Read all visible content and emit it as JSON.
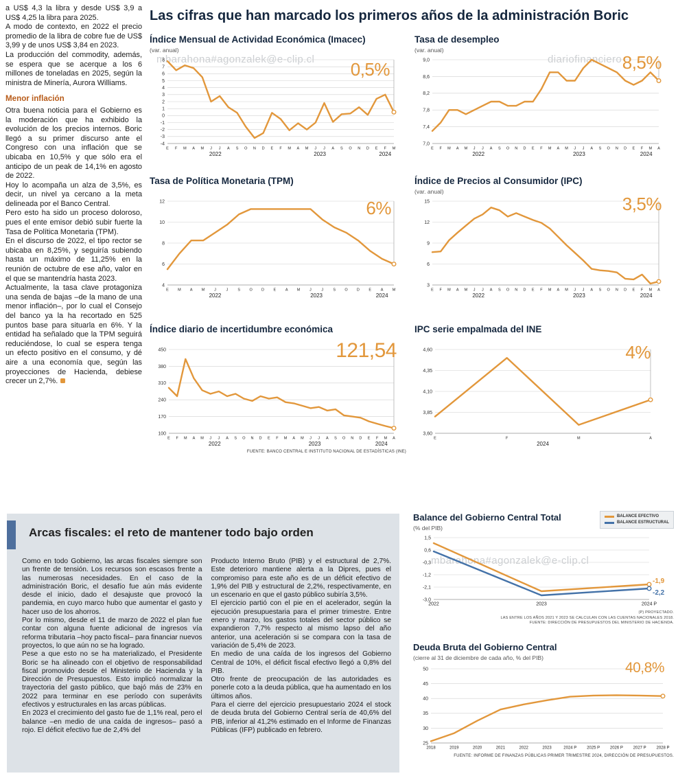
{
  "page": {
    "main_title": "Las cifras que han marcado los primeros años de la administración Boric",
    "watermark1": "mbarahona#agonzalek@e-clip.cl",
    "watermark2": "diariofinanciero",
    "watermark3": "mbarahona#agonzalek@e-clip.cl"
  },
  "left_article": {
    "intro": "a US$ 4,3 la libra y desde US$ 3,9 a US$ 4,25 la libra para 2025.\nA modo de contexto, en 2022 el precio promedio de la libra de cobre fue de US$ 3,99 y de unos US$ 3,84 en 2023.\nLa producción del commodity, además, se espera que se acerque a los 6 millones de toneladas en 2025, según la ministra de Minería, Aurora Williams.",
    "heading": "Menor inflación",
    "body": "Otra buena noticia para el Gobierno es la moderación que ha exhibido la evolución de los precios internos. Boric llegó a su primer discurso ante el Congreso con una inflación que se ubicaba en 10,5% y que sólo era el anticipo de un peak de 14,1% en agosto de 2022.\nHoy lo acompaña un alza de 3,5%, es decir, un nivel ya cercano a la meta delineada por el Banco Central.\nPero esto ha sido un proceso doloroso, pues el ente emisor debió subir fuerte la Tasa de Política Monetaria (TPM).\nEn el discurso de 2022, el tipo rector se ubicaba en 8,25%, y seguiría subiendo hasta un máximo de 11,25% en la reunión de octubre de ese año, valor en el que se mantendría hasta 2023.\nActualmente, la tasa clave protagoniza una senda de bajas –de la mano de una menor inflación–, por lo cual el Consejo del banco ya la ha recortado en 525 puntos base para situarla en 6%. Y la entidad ha señalado que la TPM seguirá reduciéndose, lo cual se espera tenga un efecto positivo en el consumo, y dé aire a una economía que, según las proyecciones de Hacienda, debiese crecer un 2,7%."
  },
  "fiscal_section": {
    "heading": "Arcas fiscales: el reto de mantener todo bajo orden",
    "col1": "Como en todo Gobierno, las arcas fiscales siempre son un frente de tensión. Los recursos son escasos frente a las numerosas necesidades. En el caso de la administración Boric, el desafío fue aún más evidente desde el inicio, dado el desajuste que provocó la pandemia, en cuyo marco hubo que aumentar el gasto y hacer uso de los ahorros.\nPor lo mismo, desde el 11 de marzo de 2022 el plan fue contar con alguna fuente adicional de ingresos vía reforma tributaria –hoy pacto fiscal– para financiar nuevos proyectos, lo que aún no se ha logrado.\nPese a que esto no se ha materializado, el Presidente Boric se ha alineado con el objetivo de responsabilidad fiscal promovido desde el Ministerio de Hacienda y la Dirección de Presupuestos. Esto implicó normalizar la trayectoria del gasto público, que bajó más de 23% en 2022 para terminar en ese período con superávits efectivos y estructurales en las arcas públicas.\nEn 2023 el crecimiento del gasto fue de 1,1% real, pero el balance –en medio de una caída de ingresos– pasó a rojo. El déficit efectivo fue de 2,4% del",
    "col2": "Producto Interno Bruto (PIB) y el estructural de 2,7%. Este deterioro mantiene alerta a la Dipres, pues el compromiso para este año es de un déficit efectivo de 1,9% del PIB y estructural de 2,2%, respectivamente, en un escenario en que el gasto público subiría 3,5%.\nEl ejercicio partió con el pie en el acelerador, según la ejecución presupuestaria para el primer trimestre. Entre enero y marzo, los gastos totales del sector público se expandieron 7,7% respecto al mismo lapso del año anterior, una aceleración si se compara con la tasa de variación de 5,4% de 2023.\nEn medio de una caída de los ingresos del Gobierno Central de 10%, el déficit fiscal efectivo llegó a 0,8% del PIB.\nOtro frente de preocupación de las autoridades es ponerle coto a la deuda pública, que ha aumentado en los últimos años.\nPara el cierre del ejercicio presupuestario 2024 el stock de deuda bruta del Gobierno Central sería de 40,6% del PIB, inferior al 41,2% estimado en el Informe de Finanzas Públicas (IFP) publicado en febrero."
  },
  "colors": {
    "accent_orange": "#E2973B",
    "accent_blue": "#4472A8",
    "navy": "#15273E",
    "panel_gray": "#DDE2E7"
  },
  "chart_data": {
    "imacec": {
      "type": "line",
      "title": "Índice Mensual de Actividad Económica (Imacec)",
      "subtitle": "(var. anual)",
      "value_label": "0,5%",
      "ylim": [
        -4,
        8
      ],
      "ytick_values": [
        8,
        7,
        6,
        5,
        4,
        3,
        2,
        1,
        0,
        -1,
        -2,
        -3,
        -4
      ],
      "ytick_labels": [
        "8",
        "7",
        "6",
        "5",
        "4",
        "3",
        "2",
        "1",
        "0",
        "-1",
        "-2",
        "-3",
        "-4"
      ],
      "x_labels": [
        "E",
        "F",
        "M",
        "A",
        "M",
        "J",
        "J",
        "A",
        "S",
        "O",
        "N",
        "D",
        "E",
        "F",
        "M",
        "A",
        "M",
        "J",
        "J",
        "A",
        "S",
        "O",
        "N",
        "D",
        "E",
        "F",
        "M"
      ],
      "yearspans": [
        {
          "label": "2022",
          "from": 0,
          "to": 11
        },
        {
          "label": "2023",
          "from": 12,
          "to": 23
        },
        {
          "label": "2024",
          "from": 24,
          "to": 26
        }
      ],
      "guide": true,
      "margins": {
        "l": 26,
        "r": 18,
        "t": 6,
        "b": 22
      },
      "series": [
        {
          "name": "Imacec",
          "color": "#E2973B",
          "values": [
            7.8,
            6.5,
            7.2,
            6.8,
            5.5,
            2.0,
            2.8,
            1.2,
            0.4,
            -1.6,
            -3.2,
            -2.5,
            0.4,
            -0.5,
            -2.1,
            -1.1,
            -2.0,
            -1.0,
            1.8,
            -0.9,
            0.2,
            0.3,
            1.2,
            0.1,
            2.4,
            3.0,
            0.5
          ]
        }
      ]
    },
    "desempleo": {
      "type": "line",
      "title": "Tasa de desempleo",
      "subtitle": "(var. anual)",
      "value_label": "8,5%",
      "ylim": [
        7.0,
        9.0
      ],
      "ytick_values": [
        9.0,
        8.6,
        8.2,
        7.8,
        7.4,
        7.0
      ],
      "ytick_labels": [
        "9,0",
        "8,6",
        "8,2",
        "7,8",
        "7,4",
        "7,0"
      ],
      "x_labels": [
        "E",
        "F",
        "M",
        "A",
        "M",
        "J",
        "J",
        "A",
        "S",
        "O",
        "N",
        "D",
        "E",
        "F",
        "M",
        "A",
        "M",
        "J",
        "J",
        "A",
        "S",
        "O",
        "N",
        "D",
        "E",
        "F",
        "M",
        "A"
      ],
      "yearspans": [
        {
          "label": "2022",
          "from": 0,
          "to": 11
        },
        {
          "label": "2023",
          "from": 12,
          "to": 23
        },
        {
          "label": "2024",
          "from": 24,
          "to": 27
        }
      ],
      "guide": true,
      "margins": {
        "l": 26,
        "r": 18,
        "t": 6,
        "b": 22
      },
      "series": [
        {
          "name": "Tasa de desempleo",
          "color": "#E2973B",
          "values": [
            7.3,
            7.5,
            7.8,
            7.8,
            7.7,
            7.8,
            7.9,
            8.0,
            8.0,
            7.9,
            7.9,
            8.0,
            8.0,
            8.3,
            8.7,
            8.7,
            8.5,
            8.5,
            8.8,
            9.0,
            8.9,
            8.8,
            8.7,
            8.5,
            8.4,
            8.5,
            8.7,
            8.5
          ]
        }
      ]
    },
    "tpm": {
      "type": "line",
      "title": "Tasa de Política Monetaria (TPM)",
      "subtitle": "",
      "value_label": "6%",
      "ylim": [
        4,
        12
      ],
      "ytick_values": [
        12,
        10,
        8,
        6,
        4
      ],
      "ytick_labels": [
        "12",
        "10",
        "8",
        "6",
        "4"
      ],
      "x_labels": [
        "E",
        "M",
        "A",
        "M",
        "J",
        "J",
        "S",
        "O",
        "D",
        "E",
        "A",
        "M",
        "J",
        "J",
        "S",
        "O",
        "D",
        "E",
        "A",
        "M"
      ],
      "yearspans": [
        {
          "label": "2022",
          "from": 0,
          "to": 8
        },
        {
          "label": "2023",
          "from": 9,
          "to": 16
        },
        {
          "label": "2024",
          "from": 17,
          "to": 19
        }
      ],
      "guide": true,
      "margins": {
        "l": 26,
        "r": 18,
        "t": 6,
        "b": 22
      },
      "series": [
        {
          "name": "TPM",
          "color": "#E2973B",
          "values": [
            5.5,
            7.0,
            8.25,
            8.25,
            9.0,
            9.75,
            10.75,
            11.25,
            11.25,
            11.25,
            11.25,
            11.25,
            11.25,
            10.25,
            9.5,
            9.0,
            8.25,
            7.25,
            6.5,
            6.0
          ]
        }
      ]
    },
    "ipc": {
      "type": "line",
      "title": "Índice de Precios al Consumidor (IPC)",
      "subtitle": "(var. anual)",
      "value_label": "3,5%",
      "ylim": [
        3,
        15
      ],
      "ytick_values": [
        15,
        12,
        9,
        6,
        3
      ],
      "ytick_labels": [
        "15",
        "12",
        "9",
        "6",
        "3"
      ],
      "x_labels": [
        "E",
        "F",
        "M",
        "A",
        "M",
        "J",
        "J",
        "A",
        "S",
        "O",
        "N",
        "D",
        "E",
        "F",
        "M",
        "A",
        "M",
        "J",
        "J",
        "A",
        "S",
        "O",
        "N",
        "D",
        "E",
        "F",
        "M",
        "A"
      ],
      "yearspans": [
        {
          "label": "2022",
          "from": 0,
          "to": 11
        },
        {
          "label": "2023",
          "from": 12,
          "to": 23
        },
        {
          "label": "2024",
          "from": 24,
          "to": 27
        }
      ],
      "guide": true,
      "margins": {
        "l": 26,
        "r": 18,
        "t": 6,
        "b": 22
      },
      "series": [
        {
          "name": "IPC",
          "color": "#E2973B",
          "values": [
            7.7,
            7.8,
            9.4,
            10.5,
            11.5,
            12.5,
            13.1,
            14.1,
            13.7,
            12.8,
            13.3,
            12.8,
            12.3,
            11.9,
            11.1,
            9.9,
            8.7,
            7.6,
            6.5,
            5.3,
            5.1,
            5.0,
            4.8,
            3.9,
            3.8,
            4.5,
            3.2,
            3.5
          ]
        }
      ]
    },
    "incertidumbre": {
      "type": "line",
      "title": "Índice diario de incertidumbre económica",
      "subtitle": "",
      "value_label": "121,54",
      "source": "FUENTE: BANCO CENTRAL E INSTITUTO NACIONAL DE ESTADÍSTICAS (INE)",
      "ylim": [
        100,
        450
      ],
      "ytick_values": [
        450,
        380,
        310,
        240,
        170,
        100
      ],
      "ytick_labels": [
        "450",
        "380",
        "310",
        "240",
        "170",
        "100"
      ],
      "x_labels": [
        "E",
        "F",
        "M",
        "A",
        "M",
        "J",
        "J",
        "A",
        "S",
        "O",
        "N",
        "D",
        "E",
        "F",
        "M",
        "A",
        "M",
        "J",
        "J",
        "A",
        "S",
        "O",
        "N",
        "D",
        "E",
        "F",
        "M",
        "A"
      ],
      "yearspans": [
        {
          "label": "2022",
          "from": 0,
          "to": 11
        },
        {
          "label": "2023",
          "from": 12,
          "to": 23
        },
        {
          "label": "2024",
          "from": 24,
          "to": 27
        }
      ],
      "guide": true,
      "margins": {
        "l": 28,
        "r": 18,
        "t": 6,
        "b": 22
      },
      "series": [
        {
          "name": "Incertidumbre económica",
          "color": "#E2973B",
          "values": [
            290,
            255,
            410,
            330,
            280,
            265,
            275,
            255,
            265,
            245,
            235,
            255,
            245,
            250,
            230,
            225,
            215,
            205,
            210,
            195,
            200,
            175,
            170,
            165,
            150,
            140,
            130,
            121.54
          ]
        }
      ]
    },
    "ipc_empalmada": {
      "type": "line",
      "title": "IPC serie empalmada del INE",
      "subtitle": "",
      "value_label": "4%",
      "ylim": [
        3.6,
        4.6
      ],
      "ytick_values": [
        4.6,
        4.35,
        4.1,
        3.85,
        3.6
      ],
      "ytick_labels": [
        "4,60",
        "4,35",
        "4,10",
        "3,85",
        "3,60"
      ],
      "x_labels": [
        "E",
        "F",
        "M",
        "A"
      ],
      "yearspans": [
        {
          "label": "2024",
          "from": 0,
          "to": 3
        }
      ],
      "guide": true,
      "margins": {
        "l": 30,
        "r": 30,
        "t": 6,
        "b": 22
      },
      "series": [
        {
          "name": "IPC serie empalmada",
          "color": "#E2973B",
          "values": [
            3.8,
            4.5,
            3.7,
            4.0
          ]
        }
      ]
    },
    "balance": {
      "type": "line",
      "title": "Balance del Gobierno Central Total",
      "subtitle": "(% del PIB)",
      "legend": [
        {
          "label": "BALANCE EFECTIVO",
          "color": "#E2973B"
        },
        {
          "label": "BALANCE ESTRUCTURAL",
          "color": "#4472A8"
        }
      ],
      "note1": "(P) PROYECTADO.",
      "note2": "LAS ENTRE LOS AÑOS 2021 Y 2023 SE CALCULAN  CON LAS CUENTAS NACIONALES 2018.",
      "note3": "FUENTE: DIRECCIÓN DE PRESUPUESTOS DEL MINISTERIO DE HACIENDA.",
      "ylim": [
        -3.0,
        1.5
      ],
      "ytick_values": [
        1.5,
        0.6,
        -0.3,
        -1.2,
        -2.1,
        -3.0
      ],
      "ytick_labels": [
        "1,5",
        "0,6",
        "-0,3",
        "-1,2",
        "-2,1",
        "-3,0"
      ],
      "x_labels": [
        "2022",
        "2023",
        "2024 P"
      ],
      "xfont": 7,
      "guide": false,
      "margins": {
        "l": 30,
        "r": 36,
        "t": 6,
        "b": 14
      },
      "series": [
        {
          "name": "Balance efectivo",
          "color": "#E2973B",
          "values": [
            1.1,
            -2.4,
            -1.9
          ],
          "end_label": "-1,9",
          "end_label_dy": -2
        },
        {
          "name": "Balance estructural",
          "color": "#4472A8",
          "values": [
            0.5,
            -2.7,
            -2.2
          ],
          "end_label": "-2,2",
          "end_label_dy": 9
        }
      ]
    },
    "deuda": {
      "type": "line",
      "title": "Deuda Bruta del Gobierno Central",
      "subtitle": "(cierre al 31 de diciembre de cada año, % del PIB)",
      "value_label": "40,8%",
      "source": "FUENTE: INFORME DE FINANZAS PÚBLICAS PRIMER TRIMESTRE 2024, DIRECCIÓN DE PRESUPUESTOS.",
      "ylim": [
        25,
        50
      ],
      "ytick_values": [
        50,
        45,
        40,
        35,
        30,
        25
      ],
      "ytick_labels": [
        "50",
        "45",
        "40",
        "35",
        "30",
        "25"
      ],
      "x_labels": [
        "2018",
        "2019",
        "2020",
        "2021",
        "2022",
        "2023",
        "2024 P",
        "2025 P",
        "2026 P",
        "2027 P",
        "2028 P"
      ],
      "xfont": 6,
      "guide": false,
      "margins": {
        "l": 26,
        "r": 16,
        "t": 8,
        "b": 14
      },
      "series": [
        {
          "name": "Deuda bruta",
          "color": "#E2973B",
          "values": [
            25.6,
            28.3,
            32.5,
            36.3,
            38.0,
            39.4,
            40.6,
            41.0,
            41.1,
            41.0,
            40.8
          ]
        }
      ]
    }
  }
}
